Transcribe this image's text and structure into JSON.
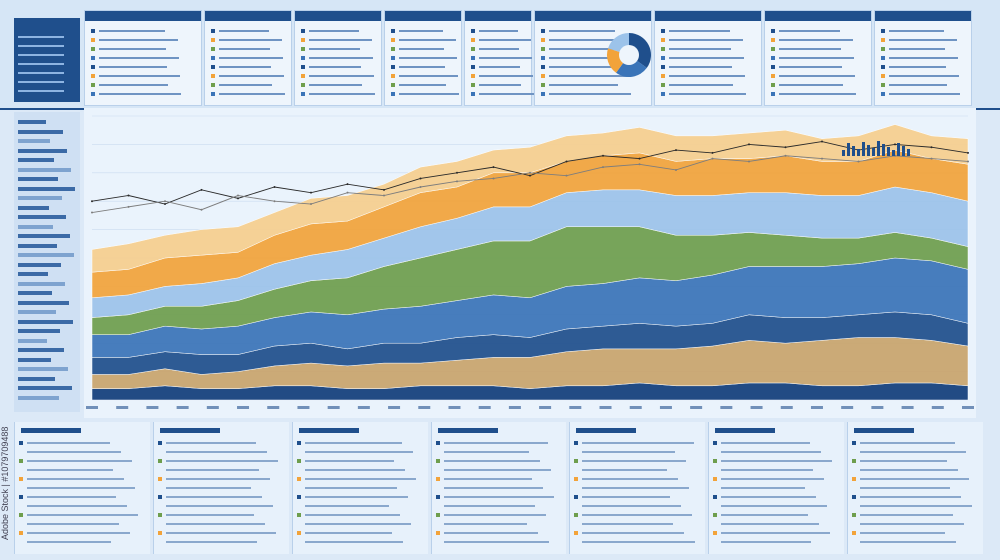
{
  "watermark_text": "Adobe Stock | #1079709488",
  "stock_overlay": "Adobe Stock",
  "colors": {
    "navy": "#1f4f8c",
    "deep_blue": "#123d7a",
    "mid_blue": "#3a74b8",
    "light_blue": "#9cc3ea",
    "orange": "#f2a33a",
    "light_orange": "#f7cf8e",
    "green": "#6e9e4d",
    "tan": "#c9a46c",
    "background": "#dce9f7"
  },
  "chart_data": {
    "type": "area",
    "xlabel": "",
    "ylabel": "",
    "grid": true,
    "legend": "none",
    "x": [
      0,
      1,
      2,
      3,
      4,
      5,
      6,
      7,
      8,
      9,
      10,
      11,
      12,
      13,
      14,
      15,
      16,
      17,
      18,
      19,
      20,
      21,
      22,
      23,
      24
    ],
    "ylim": [
      0,
      100
    ],
    "layers": [
      {
        "color": "#123d7a",
        "values": [
          4,
          4,
          5,
          4,
          4,
          5,
          5,
          4,
          4,
          5,
          5,
          5,
          4,
          5,
          5,
          6,
          5,
          5,
          6,
          6,
          5,
          5,
          6,
          6,
          5
        ]
      },
      {
        "color": "#c9a46c",
        "values": [
          5,
          5,
          6,
          5,
          6,
          7,
          8,
          8,
          9,
          8,
          9,
          10,
          11,
          12,
          13,
          12,
          13,
          14,
          15,
          14,
          16,
          17,
          16,
          15,
          14
        ]
      },
      {
        "color": "#1f4f8c",
        "values": [
          6,
          6,
          6,
          7,
          6,
          7,
          7,
          6,
          7,
          7,
          8,
          8,
          7,
          8,
          8,
          9,
          8,
          8,
          9,
          9,
          8,
          8,
          9,
          9,
          8
        ]
      },
      {
        "color": "#3a74b8",
        "values": [
          8,
          8,
          9,
          9,
          10,
          10,
          11,
          12,
          12,
          13,
          13,
          14,
          14,
          15,
          15,
          16,
          16,
          17,
          17,
          18,
          18,
          18,
          19,
          19,
          19
        ]
      },
      {
        "color": "#6e9e4d",
        "values": [
          6,
          7,
          7,
          8,
          9,
          10,
          11,
          13,
          15,
          17,
          18,
          19,
          20,
          21,
          20,
          18,
          16,
          14,
          12,
          11,
          10,
          9,
          9,
          8,
          8
        ]
      },
      {
        "color": "#9cc3ea",
        "values": [
          7,
          7,
          7,
          8,
          8,
          9,
          9,
          10,
          10,
          11,
          11,
          12,
          12,
          12,
          13,
          13,
          14,
          14,
          14,
          15,
          15,
          15,
          16,
          16,
          16
        ]
      },
      {
        "color": "#f2a33a",
        "values": [
          9,
          9,
          10,
          10,
          9,
          10,
          11,
          10,
          11,
          12,
          11,
          12,
          12,
          11,
          12,
          13,
          12,
          13,
          12,
          13,
          12,
          12,
          13,
          12,
          13
        ]
      },
      {
        "color": "#f7cf8e",
        "values": [
          8,
          9,
          8,
          9,
          9,
          8,
          9,
          9,
          8,
          9,
          9,
          8,
          9,
          9,
          8,
          9,
          9,
          8,
          9,
          9,
          8,
          9,
          9,
          8,
          9
        ]
      }
    ],
    "line_series": [
      {
        "color": "#2a2a2a",
        "values": [
          70,
          72,
          69,
          74,
          71,
          75,
          73,
          76,
          74,
          78,
          80,
          82,
          79,
          84,
          86,
          85,
          88,
          87,
          90,
          89,
          91,
          88,
          90,
          89,
          87
        ]
      },
      {
        "color": "#7d7d7d",
        "values": [
          66,
          68,
          70,
          67,
          72,
          70,
          69,
          73,
          72,
          75,
          77,
          78,
          80,
          79,
          82,
          83,
          81,
          85,
          84,
          86,
          85,
          84,
          86,
          85,
          84
        ]
      }
    ]
  }
}
